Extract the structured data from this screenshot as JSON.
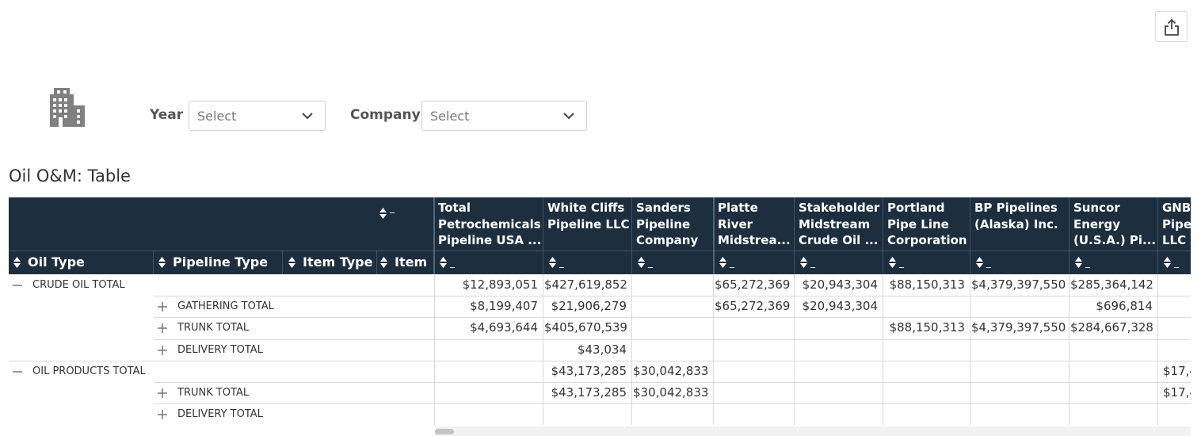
{
  "toolbar": {
    "share_icon": "share-icon"
  },
  "header_icon": "building-icon",
  "filters": {
    "year": {
      "label": "Year",
      "value": "Select"
    },
    "company": {
      "label": "Company",
      "value": "Select"
    }
  },
  "table": {
    "title": "Oil O&M: Table",
    "row_headers": [
      "Oil Type",
      "Pipeline Type",
      "Item Type",
      "Item"
    ],
    "top_dash": "_",
    "columns": [
      {
        "name": [
          "Total",
          "Petrochemicals",
          "Pipeline USA ..."
        ]
      },
      {
        "name": [
          "White Cliffs",
          "Pipeline LLC"
        ]
      },
      {
        "name": [
          "Sanders",
          "Pipeline",
          "Company"
        ]
      },
      {
        "name": [
          "Platte",
          "River",
          "Midstrea..."
        ]
      },
      {
        "name": [
          "Stakeholder",
          "Midstream",
          "Crude Oil ..."
        ]
      },
      {
        "name": [
          "Portland",
          "Pipe Line",
          "Corporation"
        ]
      },
      {
        "name": [
          "BP Pipelines",
          "(Alaska) Inc."
        ]
      },
      {
        "name": [
          "Suncor",
          "Energy",
          "(U.S.A.) Pi..."
        ]
      },
      {
        "name": [
          "GNB",
          "Pipe",
          "LLC"
        ]
      }
    ],
    "column_dash": "_",
    "rows": [
      {
        "level": 0,
        "label": "CRUDE OIL TOTAL",
        "expander": "minus",
        "values": [
          "$12,893,051",
          "$427,619,852",
          "",
          "$65,272,369",
          "$20,943,304",
          "$88,150,313",
          "$4,379,397,550",
          "$285,364,142",
          ""
        ]
      },
      {
        "level": 1,
        "label": "GATHERING TOTAL",
        "expander": "plus",
        "values": [
          "$8,199,407",
          "$21,906,279",
          "",
          "$65,272,369",
          "$20,943,304",
          "",
          "",
          "$696,814",
          ""
        ]
      },
      {
        "level": 1,
        "label": "TRUNK TOTAL",
        "expander": "plus",
        "values": [
          "$4,693,644",
          "$405,670,539",
          "",
          "",
          "",
          "$88,150,313",
          "$4,379,397,550",
          "$284,667,328",
          ""
        ]
      },
      {
        "level": 1,
        "label": "DELIVERY TOTAL",
        "expander": "plus",
        "values": [
          "",
          "$43,034",
          "",
          "",
          "",
          "",
          "",
          "",
          ""
        ]
      },
      {
        "level": 0,
        "label": "OIL PRODUCTS TOTAL",
        "expander": "minus",
        "values": [
          "",
          "$43,173,285",
          "$30,042,833",
          "",
          "",
          "",
          "",
          "",
          "$17,4"
        ]
      },
      {
        "level": 1,
        "label": "TRUNK TOTAL",
        "expander": "plus",
        "values": [
          "",
          "$43,173,285",
          "$30,042,833",
          "",
          "",
          "",
          "",
          "",
          "$17,4"
        ]
      },
      {
        "level": 1,
        "label": "DELIVERY TOTAL",
        "expander": "plus",
        "values": [
          "",
          "",
          "",
          "",
          "",
          "",
          "",
          "",
          ""
        ]
      }
    ]
  }
}
